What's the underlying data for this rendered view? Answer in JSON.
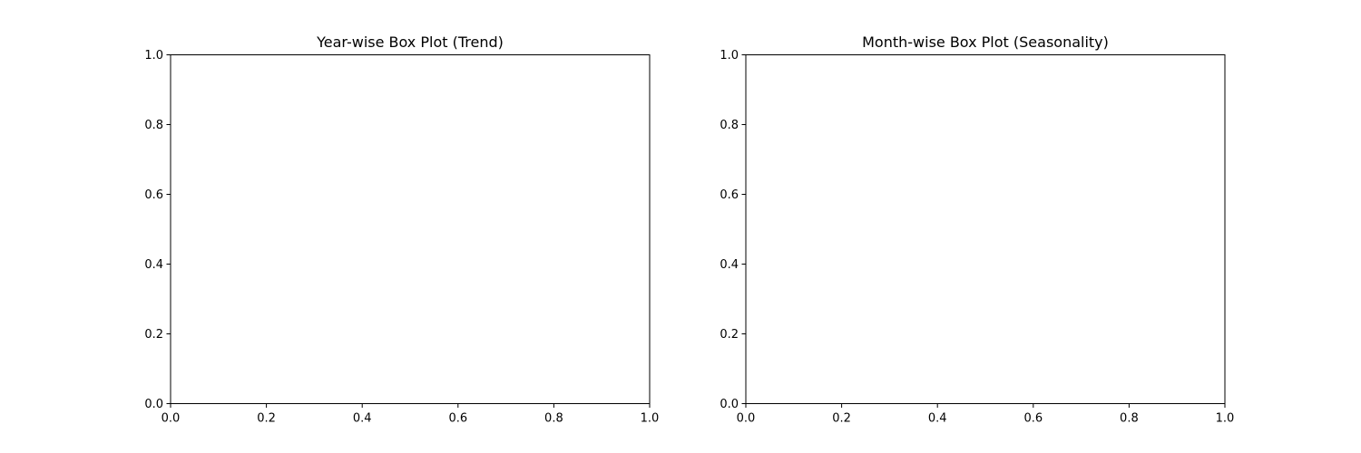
{
  "chart_data": [
    {
      "type": "box",
      "title": "Year-wise Box Plot (Trend)",
      "xlabel": "",
      "ylabel": "",
      "xlim": [
        0.0,
        1.0
      ],
      "ylim": [
        0.0,
        1.0
      ],
      "xticks": [
        "0.0",
        "0.2",
        "0.4",
        "0.6",
        "0.8",
        "1.0"
      ],
      "yticks": [
        "0.0",
        "0.2",
        "0.4",
        "0.6",
        "0.8",
        "1.0"
      ],
      "grid": false,
      "series": []
    },
    {
      "type": "box",
      "title": "Month-wise Box Plot (Seasonality)",
      "xlabel": "",
      "ylabel": "",
      "xlim": [
        0.0,
        1.0
      ],
      "ylim": [
        0.0,
        1.0
      ],
      "xticks": [
        "0.0",
        "0.2",
        "0.4",
        "0.6",
        "0.8",
        "1.0"
      ],
      "yticks": [
        "0.0",
        "0.2",
        "0.4",
        "0.6",
        "0.8",
        "1.0"
      ],
      "grid": false,
      "series": []
    }
  ]
}
